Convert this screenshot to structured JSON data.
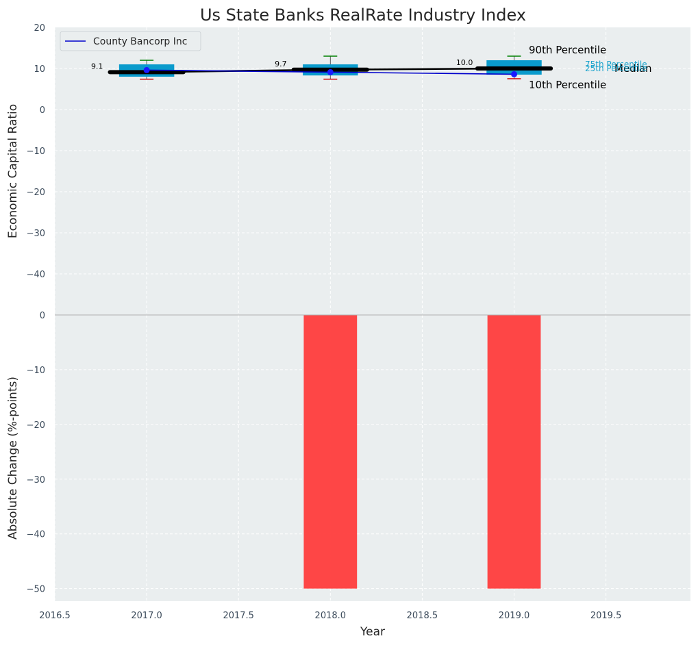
{
  "chart_data": {
    "type": "box-line-bar",
    "title": "Us State Banks RealRate Industry Index",
    "xlabel": "Year",
    "xlim": [
      2016.5,
      2019.96
    ],
    "x_ticks": [
      "2016.5",
      "2017.0",
      "2017.5",
      "2018.0",
      "2018.5",
      "2019.0",
      "2019.5"
    ],
    "x_tick_values": [
      2016.5,
      2017.0,
      2017.5,
      2018.0,
      2018.5,
      2019.0,
      2019.5
    ],
    "top_panel": {
      "ylabel": "Economic Capital Ratio",
      "ylim": [
        -50,
        20
      ],
      "y_ticks": [
        "20",
        "10",
        "0",
        "−10",
        "−20",
        "−30",
        "−40"
      ],
      "y_tick_values": [
        20,
        10,
        0,
        -10,
        -20,
        -30,
        -40
      ],
      "years": [
        2017,
        2018,
        2019
      ],
      "p10": [
        7.4,
        7.4,
        7.5
      ],
      "p25": [
        8.0,
        8.3,
        8.5
      ],
      "median": [
        9.1,
        9.7,
        10.0
      ],
      "p75": [
        11.0,
        11.0,
        12.0
      ],
      "p90": [
        12.0,
        13.0,
        13.0
      ],
      "median_labels": [
        "9.1",
        "9.7",
        "10.0"
      ],
      "company_series": {
        "name": "County Bancorp Inc",
        "values": [
          9.6,
          9.1,
          8.6
        ]
      },
      "annotations": {
        "p90": "90th Percentile",
        "median": "Median",
        "p10": "10th Percentile",
        "p75": "75th Percentile",
        "p25": "25th Percentile"
      }
    },
    "bottom_panel": {
      "type": "bar",
      "ylabel": "Absolute Change (%-points)",
      "ylim": [
        -52.3,
        0
      ],
      "y_ticks": [
        "0",
        "−10",
        "−20",
        "−30",
        "−40",
        "−50"
      ],
      "y_tick_values": [
        0,
        -10,
        -20,
        -30,
        -40,
        -50
      ],
      "years": [
        2018,
        2019
      ],
      "values": [
        -50,
        -50
      ]
    },
    "legend": {
      "placement": "top-left",
      "entries": [
        "County Bancorp Inc"
      ]
    },
    "grid": true,
    "colors": {
      "background": "#eaeeef",
      "box": "#0a9bcc",
      "median_line": "#000000",
      "company_line": "#0000cc",
      "whisker_high": "#008000",
      "whisker_low": "#cc0000",
      "bar": "#ff3c3c",
      "text": "#262626",
      "tick_text": "#3b4a5a",
      "annotation_small": "#1aa3cc"
    }
  }
}
